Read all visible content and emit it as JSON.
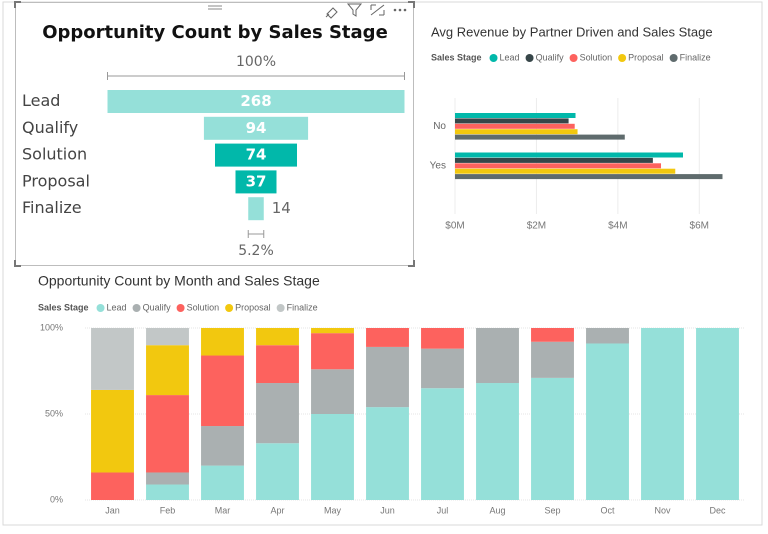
{
  "chart_data": [
    {
      "type": "funnel",
      "title": "Opportunity Count by Sales Stage",
      "categories": [
        "Lead",
        "Qualify",
        "Solution",
        "Proposal",
        "Finalize"
      ],
      "values": [
        268,
        94,
        74,
        37,
        14
      ],
      "colors": [
        "#95e0d9",
        "#95e0d9",
        "#01b8aa",
        "#01b8aa",
        "#95e0d9"
      ],
      "top_label": "100%",
      "bottom_label": "5.2%"
    },
    {
      "type": "hbar",
      "title": "Avg Revenue by Partner Driven and Sales Stage",
      "legend_title": "Sales Stage",
      "categories": [
        "No",
        "Yes"
      ],
      "series": [
        {
          "name": "Lead",
          "color": "#01b8aa",
          "values": [
            2960000,
            5600000
          ]
        },
        {
          "name": "Qualify",
          "color": "#374649",
          "values": [
            2790000,
            4860000
          ]
        },
        {
          "name": "Solution",
          "color": "#fd625e",
          "values": [
            2940000,
            5060000
          ]
        },
        {
          "name": "Proposal",
          "color": "#f2c80f",
          "values": [
            3010000,
            5410000
          ]
        },
        {
          "name": "Finalize",
          "color": "#5f6b6d",
          "values": [
            4170000,
            6570000
          ]
        }
      ],
      "xlim": [
        0,
        7000000
      ],
      "xticks": [
        {
          "value": 0,
          "label": "$0M"
        },
        {
          "value": 2000000,
          "label": "$2M"
        },
        {
          "value": 4000000,
          "label": "$4M"
        },
        {
          "value": 6000000,
          "label": "$6M"
        }
      ],
      "grid": true
    },
    {
      "type": "stacked_column_100",
      "title": "Opportunity Count by Month and Sales Stage",
      "legend_title": "Sales Stage",
      "categories": [
        "Jan",
        "Feb",
        "Mar",
        "Apr",
        "May",
        "Jun",
        "Jul",
        "Aug",
        "Sep",
        "Oct",
        "Nov",
        "Dec"
      ],
      "series": [
        {
          "name": "Lead",
          "color": "#95e0d9",
          "values": [
            0,
            9,
            20,
            33,
            50,
            54,
            65,
            68,
            71,
            91,
            100,
            100
          ]
        },
        {
          "name": "Qualify",
          "color": "#aab0b1",
          "values": [
            0,
            7,
            23,
            35,
            26,
            35,
            23,
            32,
            21,
            9,
            0,
            0
          ]
        },
        {
          "name": "Solution",
          "color": "#fd625e",
          "values": [
            16,
            45,
            41,
            22,
            21,
            11,
            12,
            0,
            8,
            0,
            0,
            0
          ]
        },
        {
          "name": "Proposal",
          "color": "#f2c80f",
          "values": [
            48,
            29,
            16,
            10,
            3,
            0,
            0,
            0,
            0,
            0,
            0,
            0
          ]
        },
        {
          "name": "Finalize",
          "color": "#c2c7c7",
          "values": [
            36,
            10,
            0,
            0,
            0,
            0,
            0,
            0,
            0,
            0,
            0,
            0
          ]
        }
      ],
      "ylim": [
        0,
        100
      ],
      "yticks": [
        {
          "value": 0,
          "label": "0%"
        },
        {
          "value": 50,
          "label": "50%"
        },
        {
          "value": 100,
          "label": "100%"
        }
      ],
      "grid": true
    }
  ]
}
